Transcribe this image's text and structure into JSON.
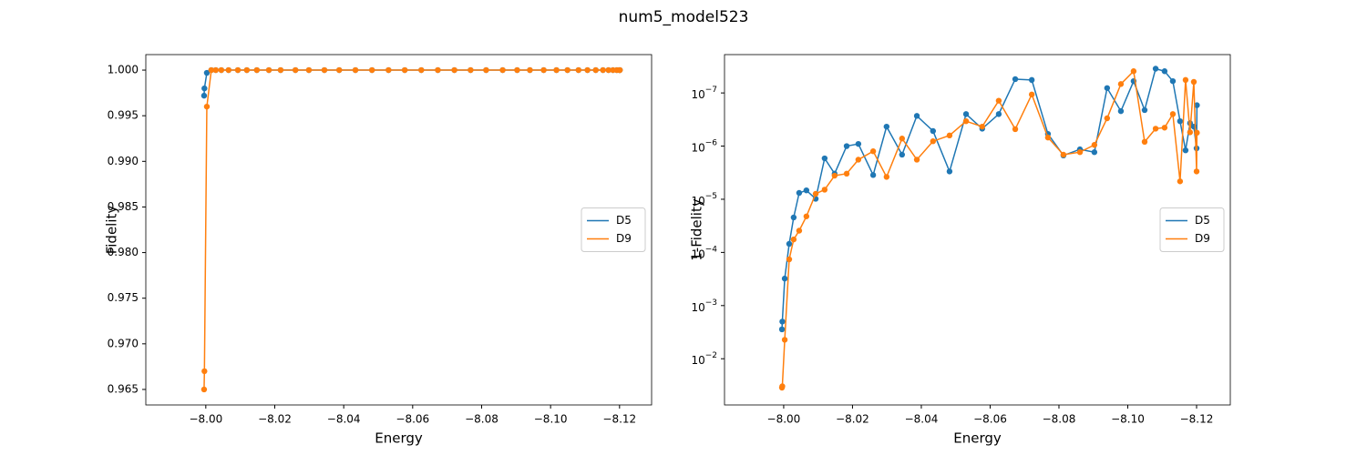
{
  "title": "num5_model523",
  "chart_data": [
    {
      "type": "line",
      "xlabel": "Energy",
      "ylabel": "Fidelity",
      "x": [
        -7.9995,
        -7.9996,
        -8.0003,
        -8.0016,
        -8.0029,
        -8.0045,
        -8.0066,
        -8.0093,
        -8.0119,
        -8.0148,
        -8.0183,
        -8.0217,
        -8.026,
        -8.0299,
        -8.0344,
        -8.0387,
        -8.0434,
        -8.0482,
        -8.053,
        -8.0577,
        -8.0625,
        -8.0673,
        -8.0721,
        -8.0768,
        -8.0813,
        -8.0861,
        -8.0903,
        -8.094,
        -8.098,
        -8.1017,
        -8.1049,
        -8.1081,
        -8.1107,
        -8.1131,
        -8.1152,
        -8.1168,
        -8.1181,
        -8.1192,
        -8.12,
        -8.1201
      ],
      "series": [
        {
          "name": "D5",
          "color": "#1f77b4",
          "values": [
            0.9972,
            0.998,
            0.9997,
            1,
            1,
            1,
            1,
            1,
            1,
            1,
            1,
            1,
            1,
            1,
            1,
            1,
            1,
            1,
            1,
            1,
            1,
            1,
            1,
            1,
            1,
            1,
            1,
            1,
            1,
            1,
            1,
            1,
            1,
            1,
            1,
            1,
            1,
            1,
            1,
            1
          ]
        },
        {
          "name": "D9",
          "color": "#ff7f0e",
          "values": [
            0.965,
            0.967,
            0.996,
            1,
            1,
            1,
            1,
            1,
            1,
            1,
            1,
            1,
            1,
            1,
            1,
            1,
            1,
            1,
            1,
            1,
            1,
            1,
            1,
            1,
            1,
            1,
            1,
            1,
            1,
            1,
            1,
            1,
            1,
            1,
            1,
            1,
            1,
            1,
            1,
            1
          ]
        }
      ],
      "xlim": [
        -7.9826,
        -8.1293
      ],
      "xticks": [
        {
          "value": -8.0,
          "label": "−8.00"
        },
        {
          "value": -8.02,
          "label": "−8.02"
        },
        {
          "value": -8.04,
          "label": "−8.04"
        },
        {
          "value": -8.06,
          "label": "−8.06"
        },
        {
          "value": -8.08,
          "label": "−8.08"
        },
        {
          "value": -8.1,
          "label": "−8.10"
        },
        {
          "value": -8.12,
          "label": "−8.12"
        }
      ],
      "ylim": [
        0.9633,
        1.0017
      ],
      "yticks": [
        {
          "value": 0.965,
          "label": "0.965"
        },
        {
          "value": 0.97,
          "label": "0.970"
        },
        {
          "value": 0.975,
          "label": "0.975"
        },
        {
          "value": 0.98,
          "label": "0.980"
        },
        {
          "value": 0.985,
          "label": "0.985"
        },
        {
          "value": 0.99,
          "label": "0.990"
        },
        {
          "value": 0.995,
          "label": "0.995"
        },
        {
          "value": 1.0,
          "label": "1.000"
        }
      ],
      "log": false,
      "legend": "center right"
    },
    {
      "type": "line",
      "xlabel": "Energy",
      "ylabel": "1-Fidelity",
      "x": [
        -7.9995,
        -7.9996,
        -8.0003,
        -8.0016,
        -8.0029,
        -8.0045,
        -8.0066,
        -8.0093,
        -8.0119,
        -8.0148,
        -8.0183,
        -8.0217,
        -8.026,
        -8.0299,
        -8.0344,
        -8.0387,
        -8.0434,
        -8.0482,
        -8.053,
        -8.0577,
        -8.0625,
        -8.0673,
        -8.0721,
        -8.0768,
        -8.0813,
        -8.0861,
        -8.0903,
        -8.094,
        -8.098,
        -8.1017,
        -8.1049,
        -8.1081,
        -8.1107,
        -8.1131,
        -8.1152,
        -8.1168,
        -8.1181,
        -8.1192,
        -8.12,
        -8.1201
      ],
      "series": [
        {
          "name": "D5",
          "color": "#1f77b4",
          "values": [
            0.0028,
            0.002,
            0.00031,
            6.9e-05,
            2.2e-05,
            7.6e-06,
            6.8e-06,
            9.8e-06,
            1.7e-06,
            3.3e-06,
            1e-06,
            9.1e-07,
            3.5e-06,
            4.3e-07,
            1.45e-06,
            2.7e-07,
            5.2e-07,
            3e-06,
            2.5e-07,
            4.7e-07,
            2.5e-07,
            5.5e-08,
            5.7e-08,
            5.9e-07,
            1.5e-06,
            1.15e-06,
            1.3e-06,
            8.1e-08,
            2.2e-07,
            6e-08,
            2.1e-07,
            3.5e-08,
            3.9e-08,
            6e-08,
            3.4e-07,
            1.2e-06,
            3.7e-07,
            4.3e-07,
            1.1e-06,
            1.7e-07
          ]
        },
        {
          "name": "D9",
          "color": "#ff7f0e",
          "values": [
            0.035,
            0.033,
            0.0044,
            0.000135,
            5.7e-05,
            3.9e-05,
            2.1e-05,
            7.9e-06,
            6.6e-06,
            3.6e-06,
            3.3e-06,
            1.8e-06,
            1.25e-06,
            3.8e-06,
            7.2e-07,
            1.8e-06,
            8.1e-07,
            6.3e-07,
            3.4e-07,
            4.3e-07,
            1.4e-07,
            4.8e-07,
            1.07e-07,
            6.9e-07,
            1.45e-06,
            1.3e-06,
            9.5e-07,
            3e-07,
            6.8e-08,
            3.9e-08,
            8.3e-07,
            4.7e-07,
            4.5e-07,
            2.5e-07,
            4.6e-06,
            5.7e-08,
            5.5e-07,
            6.2e-08,
            3e-06,
            5.6e-07
          ]
        }
      ],
      "xlim": [
        -7.9828,
        -8.1298
      ],
      "xticks": [
        {
          "value": -8.0,
          "label": "−8.00"
        },
        {
          "value": -8.02,
          "label": "−8.02"
        },
        {
          "value": -8.04,
          "label": "−8.04"
        },
        {
          "value": -8.06,
          "label": "−8.06"
        },
        {
          "value": -8.08,
          "label": "−8.08"
        },
        {
          "value": -8.1,
          "label": "−8.10"
        },
        {
          "value": -8.12,
          "label": "−8.12"
        }
      ],
      "ylim": [
        0.074,
        1.9e-08
      ],
      "yticks": [
        {
          "value": 0.01,
          "label": "10",
          "exponent": "−2"
        },
        {
          "value": 0.001,
          "label": "10",
          "exponent": "−3"
        },
        {
          "value": 0.0001,
          "label": "10",
          "exponent": "−4"
        },
        {
          "value": 1e-05,
          "label": "10",
          "exponent": "−5"
        },
        {
          "value": 1e-06,
          "label": "10",
          "exponent": "−6"
        },
        {
          "value": 1e-07,
          "label": "10",
          "exponent": "−7"
        }
      ],
      "log": true,
      "legend": "center right"
    }
  ]
}
